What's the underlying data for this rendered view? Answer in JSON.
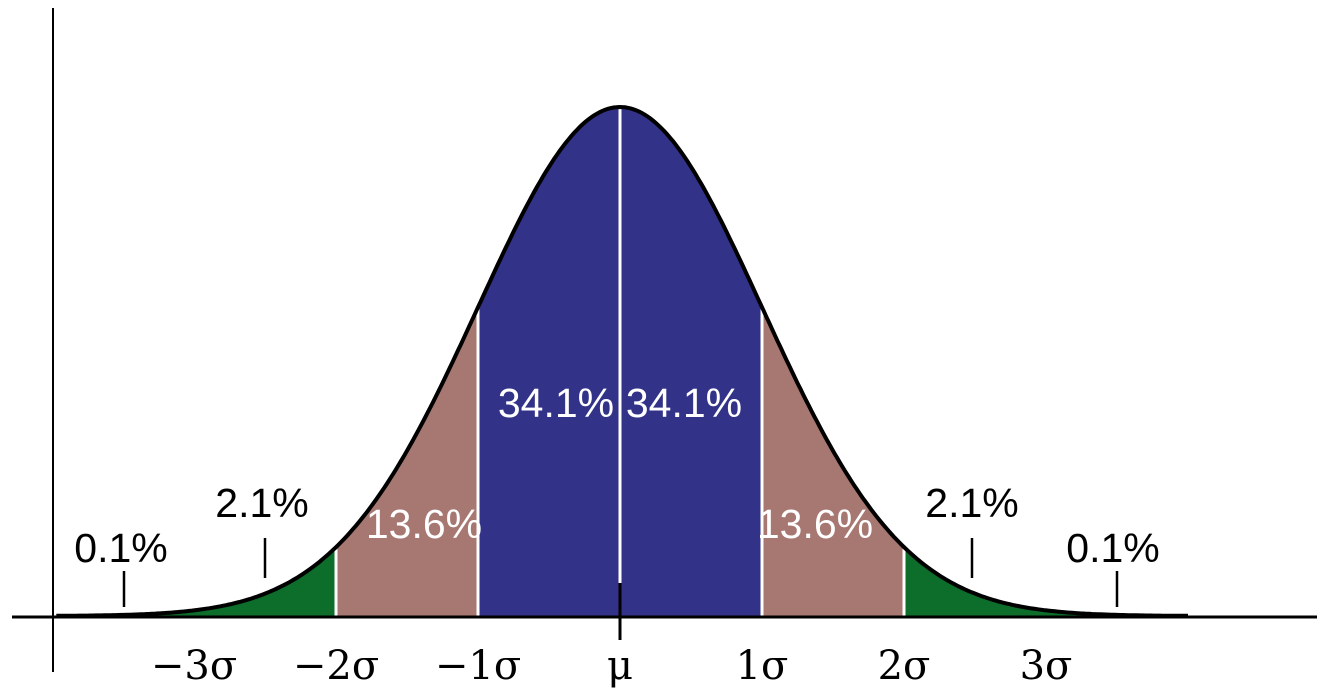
{
  "chart_data": {
    "type": "area",
    "title": "",
    "xlabel": "",
    "ylabel": "",
    "distribution": "normal",
    "xlim": [
      -4,
      4
    ],
    "colors": {
      "center": "#323288",
      "middle": "#a77772",
      "outer": "#0d6d2a",
      "tail": "#0d6d2a",
      "curve": "#000000"
    },
    "regions": [
      {
        "from": -4,
        "to": -3,
        "percent": 0.1,
        "label": "0.1%",
        "band": "tail"
      },
      {
        "from": -3,
        "to": -2,
        "percent": 2.1,
        "label": "2.1%",
        "band": "outer"
      },
      {
        "from": -2,
        "to": -1,
        "percent": 13.6,
        "label": "13.6%",
        "band": "middle"
      },
      {
        "from": -1,
        "to": 0,
        "percent": 34.1,
        "label": "34.1%",
        "band": "center"
      },
      {
        "from": 0,
        "to": 1,
        "percent": 34.1,
        "label": "34.1%",
        "band": "center"
      },
      {
        "from": 1,
        "to": 2,
        "percent": 13.6,
        "label": "13.6%",
        "band": "middle"
      },
      {
        "from": 2,
        "to": 3,
        "percent": 2.1,
        "label": "2.1%",
        "band": "outer"
      },
      {
        "from": 3,
        "to": 4,
        "percent": 0.1,
        "label": "0.1%",
        "band": "tail"
      }
    ],
    "ticks": [
      {
        "value": -3,
        "label": "−3σ"
      },
      {
        "value": -2,
        "label": "−2σ"
      },
      {
        "value": -1,
        "label": "−1σ"
      },
      {
        "value": 0,
        "label": "μ"
      },
      {
        "value": 1,
        "label": "1σ"
      },
      {
        "value": 2,
        "label": "2σ"
      },
      {
        "value": 3,
        "label": "3σ"
      }
    ]
  }
}
